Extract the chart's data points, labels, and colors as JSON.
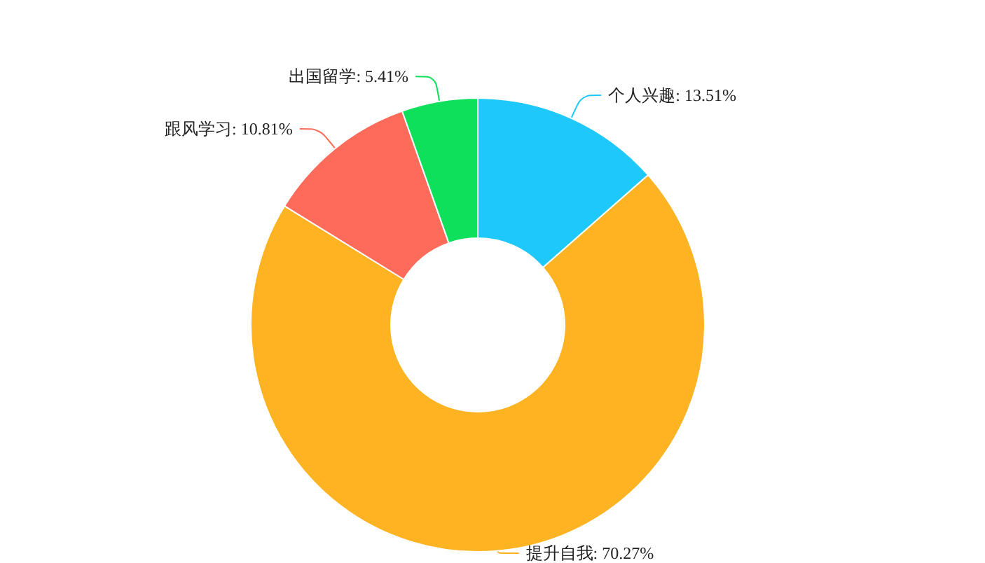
{
  "chart_data": {
    "type": "donut",
    "categories": [
      "个人兴趣",
      "提升自我",
      "跟风学习",
      "出国留学"
    ],
    "values": [
      13.51,
      70.27,
      10.81,
      5.41
    ],
    "value_labels": [
      "13.51%",
      "70.27%",
      "10.81%",
      "5.41%"
    ],
    "colors": [
      "#1ec8fa",
      "#fdb322",
      "#fe6b5a",
      "#0ee05c"
    ],
    "legend": false
  }
}
